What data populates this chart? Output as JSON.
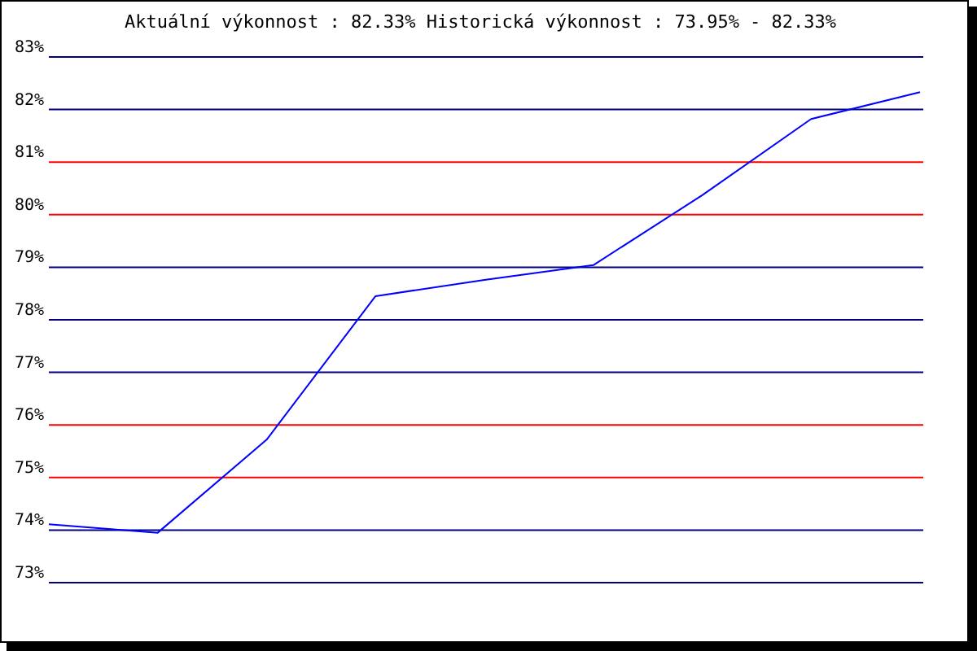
{
  "chart_data": {
    "type": "line",
    "title": "Aktuální výkonnost : 82.33%  Historická výkonnost : 73.95% - 82.33%",
    "categories": [
      null,
      null,
      null,
      null,
      null,
      null,
      null,
      null,
      null
    ],
    "series": [
      {
        "color": "#0000ff",
        "values": [
          74.11,
          73.95,
          75.72,
          78.45,
          78.76,
          79.04,
          80.37,
          81.82,
          82.33
        ]
      }
    ],
    "ylim": [
      73,
      83
    ],
    "yticks": [
      {
        "value": 73,
        "label": "73%"
      },
      {
        "value": 74,
        "label": "74%"
      },
      {
        "value": 75,
        "label": "75%"
      },
      {
        "value": 76,
        "label": "76%"
      },
      {
        "value": 77,
        "label": "77%"
      },
      {
        "value": 78,
        "label": "78%"
      },
      {
        "value": 79,
        "label": "79%"
      },
      {
        "value": 80,
        "label": "80%"
      },
      {
        "value": 81,
        "label": "81%"
      },
      {
        "value": 82,
        "label": "82%"
      },
      {
        "value": 83,
        "label": "83%"
      }
    ],
    "ref_lines": [
      {
        "axis": "y",
        "value": 74,
        "color": "#000080"
      },
      {
        "axis": "y",
        "value": 75,
        "color": "#ff0000"
      },
      {
        "axis": "y",
        "value": 76,
        "color": "#ff0000"
      },
      {
        "axis": "y",
        "value": 77,
        "color": "#000080"
      },
      {
        "axis": "y",
        "value": 78,
        "color": "#000080"
      },
      {
        "axis": "y",
        "value": 79,
        "color": "#000080"
      },
      {
        "axis": "y",
        "value": 80,
        "color": "#ff0000"
      },
      {
        "axis": "y",
        "value": 81,
        "color": "#ff0000"
      },
      {
        "axis": "y",
        "value": 82,
        "color": "#000080"
      }
    ],
    "tick_labels": "y"
  }
}
